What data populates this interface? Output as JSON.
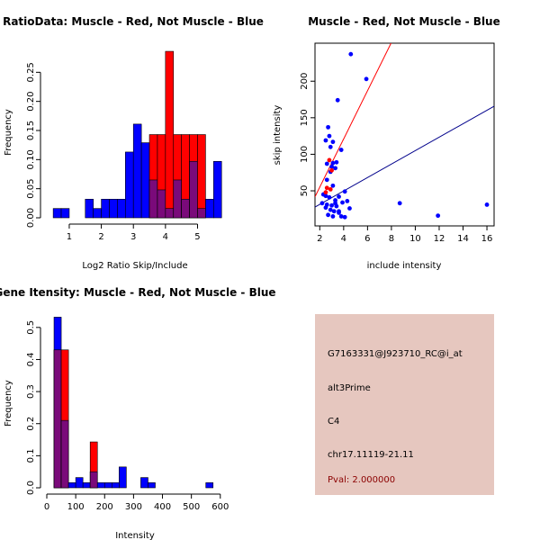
{
  "colors": {
    "red": "#ff0000",
    "blue": "#0000ff",
    "overlap": "#7a0a7a",
    "info_bg": "#e6c7bf",
    "pval": "#8b0000"
  },
  "chart_data": [
    {
      "id": "ratio",
      "type": "bar",
      "title": "RatioData: Muscle - Red, Not Muscle - Blue",
      "xlabel": "Log2 Ratio Skip/Include",
      "ylabel": "Frequency",
      "xlim": [
        0.3,
        5.8
      ],
      "ylim": [
        0,
        0.3
      ],
      "xticks": [
        1,
        2,
        3,
        4,
        5
      ],
      "yticks": [
        0.0,
        0.05,
        0.1,
        0.15,
        0.2,
        0.25
      ],
      "ytick_labels": [
        "0.00",
        "0.05",
        "0.10",
        "0.15",
        "0.20",
        "0.25"
      ],
      "bin_width": 0.25,
      "bins_start": [
        0.5,
        0.75,
        1.0,
        1.25,
        1.5,
        1.75,
        2.0,
        2.25,
        2.5,
        2.75,
        3.0,
        3.25,
        3.5,
        3.75,
        4.0,
        4.25,
        4.5,
        4.75,
        5.0,
        5.25,
        5.5
      ],
      "series": [
        {
          "name": "Not Muscle",
          "values": [
            0.016,
            0.016,
            0,
            0,
            0.032,
            0.016,
            0.032,
            0.032,
            0.032,
            0.113,
            0.161,
            0.129,
            0.065,
            0.048,
            0.016,
            0.065,
            0.032,
            0.097,
            0.016,
            0.032,
            0.097
          ]
        },
        {
          "name": "Muscle",
          "values": [
            0,
            0,
            0,
            0,
            0,
            0,
            0,
            0,
            0,
            0,
            0,
            0,
            0.143,
            0.143,
            0.286,
            0.143,
            0.143,
            0.143,
            0.143,
            0,
            0
          ]
        }
      ]
    },
    {
      "id": "scatter",
      "type": "scatter",
      "title": "Muscle - Red, Not Muscle - Blue",
      "xlabel": "include intensity",
      "ylabel": "skip intensity",
      "xlim": [
        1.6,
        16.6
      ],
      "ylim": [
        2,
        252
      ],
      "xticks": [
        2,
        4,
        6,
        8,
        10,
        12,
        14,
        16
      ],
      "yticks": [
        50,
        100,
        150,
        200
      ],
      "series": [
        {
          "name": "Not Muscle",
          "points": [
            [
              4.6,
              237
            ],
            [
              5.9,
              203
            ],
            [
              3.5,
              174
            ],
            [
              2.7,
              137
            ],
            [
              2.8,
              125
            ],
            [
              2.5,
              119
            ],
            [
              3.1,
              117
            ],
            [
              2.9,
              110
            ],
            [
              3.8,
              106
            ],
            [
              2.6,
              87
            ],
            [
              3.0,
              83
            ],
            [
              3.3,
              81
            ],
            [
              2.9,
              76
            ],
            [
              3.1,
              88
            ],
            [
              3.4,
              89
            ],
            [
              2.6,
              65
            ],
            [
              3.1,
              57
            ],
            [
              4.1,
              49
            ],
            [
              2.3,
              45
            ],
            [
              2.5,
              43
            ],
            [
              2.8,
              41
            ],
            [
              3.6,
              42
            ],
            [
              3.3,
              37
            ],
            [
              4.3,
              36
            ],
            [
              2.2,
              33
            ],
            [
              2.6,
              31
            ],
            [
              3.0,
              30
            ],
            [
              3.4,
              29
            ],
            [
              3.9,
              34
            ],
            [
              2.5,
              27
            ],
            [
              2.9,
              24
            ],
            [
              3.2,
              22
            ],
            [
              3.6,
              20
            ],
            [
              4.5,
              26
            ],
            [
              2.7,
              17
            ],
            [
              3.1,
              15
            ],
            [
              3.8,
              15
            ],
            [
              4.1,
              14
            ],
            [
              3.3,
              33
            ],
            [
              8.7,
              33
            ],
            [
              11.9,
              16
            ],
            [
              16.0,
              31
            ],
            [
              3.6,
              22
            ]
          ]
        },
        {
          "name": "Muscle",
          "points": [
            [
              2.8,
              92
            ],
            [
              3.0,
              78
            ],
            [
              2.6,
              54
            ],
            [
              2.5,
              48
            ],
            [
              2.9,
              52
            ]
          ]
        }
      ],
      "lines": [
        {
          "name": "Muscle",
          "slope": 33.0,
          "intercept": -11.0
        },
        {
          "name": "Not Muscle",
          "slope": 9.2,
          "intercept": 13.0
        }
      ]
    },
    {
      "id": "intensity",
      "type": "bar",
      "title": "Gene Itensity: Muscle - Red, Not Muscle - Blue",
      "xlabel": "Intensity",
      "ylabel": "Frequency",
      "xlim": [
        0,
        610
      ],
      "ylim": [
        0,
        0.55
      ],
      "xticks": [
        0,
        100,
        200,
        300,
        400,
        500,
        600
      ],
      "yticks": [
        0.0,
        0.1,
        0.2,
        0.3,
        0.4,
        0.5
      ],
      "ytick_labels": [
        "0.0",
        "0.1",
        "0.2",
        "0.3",
        "0.4",
        "0.5"
      ],
      "bin_width": 25,
      "bins_start": [
        25,
        50,
        75,
        100,
        125,
        150,
        175,
        200,
        225,
        250,
        275,
        300,
        325,
        350,
        375,
        400,
        425,
        450,
        475,
        500,
        525,
        550,
        575
      ],
      "series": [
        {
          "name": "Not Muscle",
          "values": [
            0.532,
            0.21,
            0.016,
            0.032,
            0.016,
            0.05,
            0.016,
            0.016,
            0.016,
            0.065,
            0,
            0,
            0.032,
            0.016,
            0,
            0,
            0,
            0,
            0,
            0,
            0,
            0.016,
            0
          ]
        },
        {
          "name": "Muscle",
          "values": [
            0.43,
            0.43,
            0,
            0,
            0,
            0.143,
            0,
            0,
            0,
            0,
            0,
            0,
            0,
            0,
            0,
            0,
            0,
            0,
            0,
            0,
            0,
            0,
            0
          ]
        }
      ]
    }
  ],
  "info": {
    "probe": "G7163331@J923710_RC@i_at",
    "event": "alt3Prime",
    "cluster": "C4",
    "location": "chr17.11119-21.11",
    "pval": "Pval: 2.000000"
  }
}
